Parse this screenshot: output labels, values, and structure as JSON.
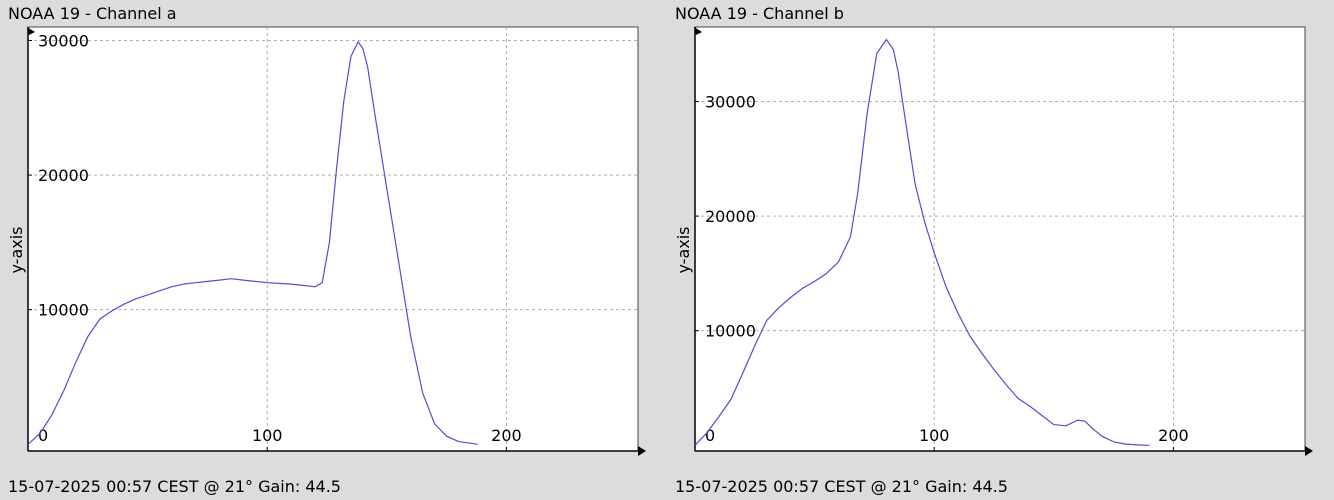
{
  "chart_data": [
    {
      "type": "line",
      "title": "NOAA 19 - Channel a",
      "footer": "15-07-2025 00:57 CEST @ 21° Gain: 44.5",
      "xlabel": "",
      "ylabel": "y-axis",
      "xlim": [
        0,
        255
      ],
      "ylim": [
        -500,
        31000
      ],
      "x_ticks": [
        0,
        100,
        200
      ],
      "y_ticks": [
        10000,
        20000,
        30000
      ],
      "grid": true,
      "line_color": "#5050d0",
      "series": [
        {
          "x": [
            0,
            5,
            10,
            15,
            20,
            25,
            30,
            35,
            40,
            45,
            50,
            55,
            60,
            65,
            70,
            75,
            80,
            85,
            90,
            95,
            100,
            105,
            110,
            115,
            120,
            123,
            126,
            129,
            132,
            135,
            138,
            140,
            142,
            145,
            150,
            155,
            160,
            165,
            170,
            175,
            180,
            185,
            188
          ],
          "y": [
            0,
            800,
            2200,
            4000,
            6100,
            8000,
            9300,
            9900,
            10400,
            10800,
            11100,
            11400,
            11700,
            11900,
            12000,
            12100,
            12200,
            12300,
            12200,
            12100,
            12000,
            11950,
            11900,
            11800,
            11700,
            12000,
            15000,
            20500,
            25500,
            28800,
            29900,
            29400,
            28000,
            24500,
            19000,
            13500,
            8000,
            3800,
            1500,
            600,
            200,
            80,
            0
          ]
        }
      ]
    },
    {
      "type": "line",
      "title": "NOAA 19 - Channel b",
      "footer": "15-07-2025 00:57 CEST @ 21° Gain: 44.5",
      "xlabel": "",
      "ylabel": "y-axis",
      "xlim": [
        0,
        255
      ],
      "ylim": [
        -500,
        36500
      ],
      "x_ticks": [
        0,
        100,
        200
      ],
      "y_ticks": [
        10000,
        20000,
        30000
      ],
      "grid": true,
      "line_color": "#5050d0",
      "series": [
        {
          "x": [
            0,
            5,
            10,
            15,
            20,
            25,
            30,
            35,
            40,
            45,
            50,
            55,
            60,
            65,
            68,
            72,
            76,
            80,
            83,
            85,
            88,
            92,
            96,
            100,
            105,
            110,
            115,
            120,
            125,
            130,
            135,
            140,
            145,
            150,
            155,
            160,
            163,
            166,
            170,
            175,
            180,
            185,
            190
          ],
          "y": [
            0,
            1100,
            2500,
            4000,
            6300,
            8700,
            10900,
            12000,
            12900,
            13700,
            14300,
            15000,
            16000,
            18200,
            22000,
            29000,
            34200,
            35400,
            34500,
            32500,
            28300,
            22800,
            19500,
            16800,
            13800,
            11500,
            9500,
            8000,
            6600,
            5300,
            4100,
            3400,
            2600,
            1800,
            1700,
            2200,
            2100,
            1500,
            800,
            300,
            100,
            30,
            0
          ]
        }
      ]
    }
  ]
}
